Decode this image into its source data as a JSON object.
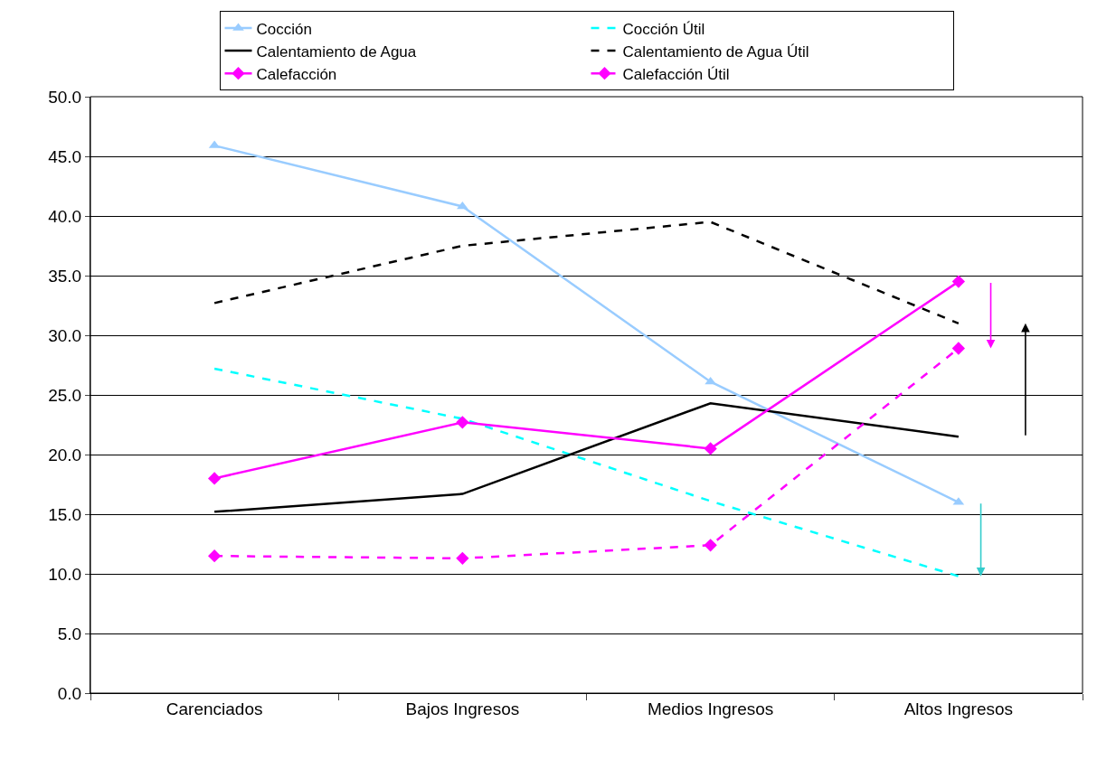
{
  "chart_data": {
    "type": "line",
    "categories": [
      "Carenciados",
      "Bajos Ingresos",
      "Medios Ingresos",
      "Altos Ingresos"
    ],
    "series": [
      {
        "name": "Cocción",
        "color": "#99ccff",
        "marker": "triangle",
        "line_style": "solid",
        "values": [
          45.9,
          40.8,
          26.1,
          16.0
        ]
      },
      {
        "name": "Cocción Útil",
        "color": "#00ffff",
        "marker": "none",
        "line_style": "dashed",
        "values": [
          27.2,
          23.0,
          16.1,
          9.8
        ]
      },
      {
        "name": "Calentamiento de Agua",
        "color": "#000000",
        "marker": "none",
        "line_style": "solid",
        "values": [
          15.2,
          16.7,
          24.3,
          21.5
        ]
      },
      {
        "name": "Calentamiento de Agua Útil",
        "color": "#000000",
        "marker": "none",
        "line_style": "dashed",
        "values": [
          32.7,
          37.5,
          39.5,
          31.0
        ]
      },
      {
        "name": "Calefacción",
        "color": "#ff00ff",
        "marker": "diamond",
        "line_style": "solid",
        "values": [
          18.0,
          22.7,
          20.5,
          34.5
        ]
      },
      {
        "name": "Calefacción Útil",
        "color": "#ff00ff",
        "marker": "diamond",
        "line_style": "dashed",
        "values": [
          11.5,
          11.3,
          12.4,
          28.9
        ]
      }
    ],
    "ylim": [
      0,
      50
    ],
    "yticks": [
      {
        "value": 0,
        "label": "0.0"
      },
      {
        "value": 5,
        "label": "5.0"
      },
      {
        "value": 10,
        "label": "10.0"
      },
      {
        "value": 15,
        "label": "15.0"
      },
      {
        "value": 20,
        "label": "20.0"
      },
      {
        "value": 25,
        "label": "25.0"
      },
      {
        "value": 30,
        "label": "30.0"
      },
      {
        "value": 35,
        "label": "35.0"
      },
      {
        "value": 40,
        "label": "40.0"
      },
      {
        "value": 45,
        "label": "45.0"
      },
      {
        "value": 50,
        "label": "50.0"
      }
    ],
    "grid": "y",
    "legend": "top"
  }
}
